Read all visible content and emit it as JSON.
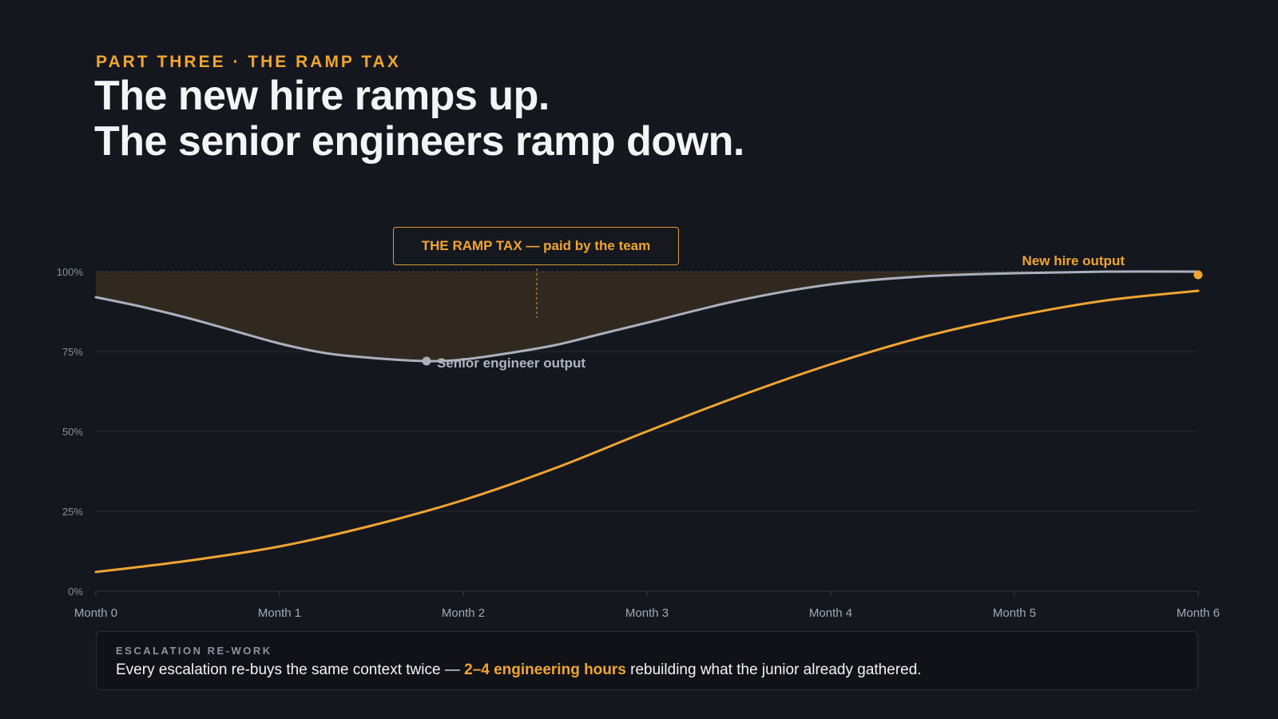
{
  "header": {
    "eyebrow": "PART THREE · THE RAMP TAX",
    "headline_line1": "The new hire ramps up.",
    "headline_line2": "The senior engineers ramp down."
  },
  "callout": {
    "label": "THE RAMP TAX — paid by the team"
  },
  "footer": {
    "kicker": "ESCALATION RE-WORK",
    "text_before": "Every escalation re-buys the same context twice — ",
    "highlight": "2–4 engineering hours",
    "text_after": " rebuilding what the junior already gathered."
  },
  "colors": {
    "background": "#15171f",
    "accent": "#f0a530",
    "senior_line": "#aab0bd",
    "gap_fill": "#332a20"
  },
  "chart_data": {
    "type": "line",
    "xlabel": "",
    "ylabel": "",
    "x_ticks": [
      "Month 0",
      "Month 1",
      "Month 2",
      "Month 3",
      "Month 4",
      "Month 5",
      "Month 6"
    ],
    "y_ticks": [
      "0%",
      "25%",
      "50%",
      "75%",
      "100%"
    ],
    "xlim": [
      0,
      6
    ],
    "ylim": [
      0,
      100
    ],
    "grid": true,
    "series": [
      {
        "name": "New hire output",
        "color": "#f0a530",
        "x": [
          0,
          0.5,
          1,
          1.5,
          2,
          2.5,
          3,
          3.5,
          4,
          4.5,
          5,
          5.5,
          6
        ],
        "y": [
          6,
          9.5,
          14,
          20.5,
          28.5,
          38.5,
          50,
          61,
          71,
          79.5,
          86,
          91,
          94
        ]
      },
      {
        "name": "Senior engineer output",
        "color": "#aab0bd",
        "x": [
          0,
          0.25,
          0.5,
          0.75,
          1,
          1.25,
          1.5,
          1.8,
          2,
          2.25,
          2.5,
          2.75,
          3,
          3.5,
          4,
          4.5,
          5,
          5.5,
          6
        ],
        "y": [
          92,
          89,
          85.5,
          81.5,
          77.5,
          74.5,
          73,
          72,
          72.5,
          74.5,
          77,
          80.5,
          84,
          91,
          96,
          98.5,
          99.5,
          100,
          100
        ]
      }
    ],
    "reference_line": 100,
    "shaded_region": "between 100% and Senior engineer output",
    "annotations": [
      {
        "text": "Senior engineer output",
        "x": 1.8,
        "y": 72
      },
      {
        "text": "New hire output",
        "x": 6,
        "y": 100
      }
    ]
  }
}
